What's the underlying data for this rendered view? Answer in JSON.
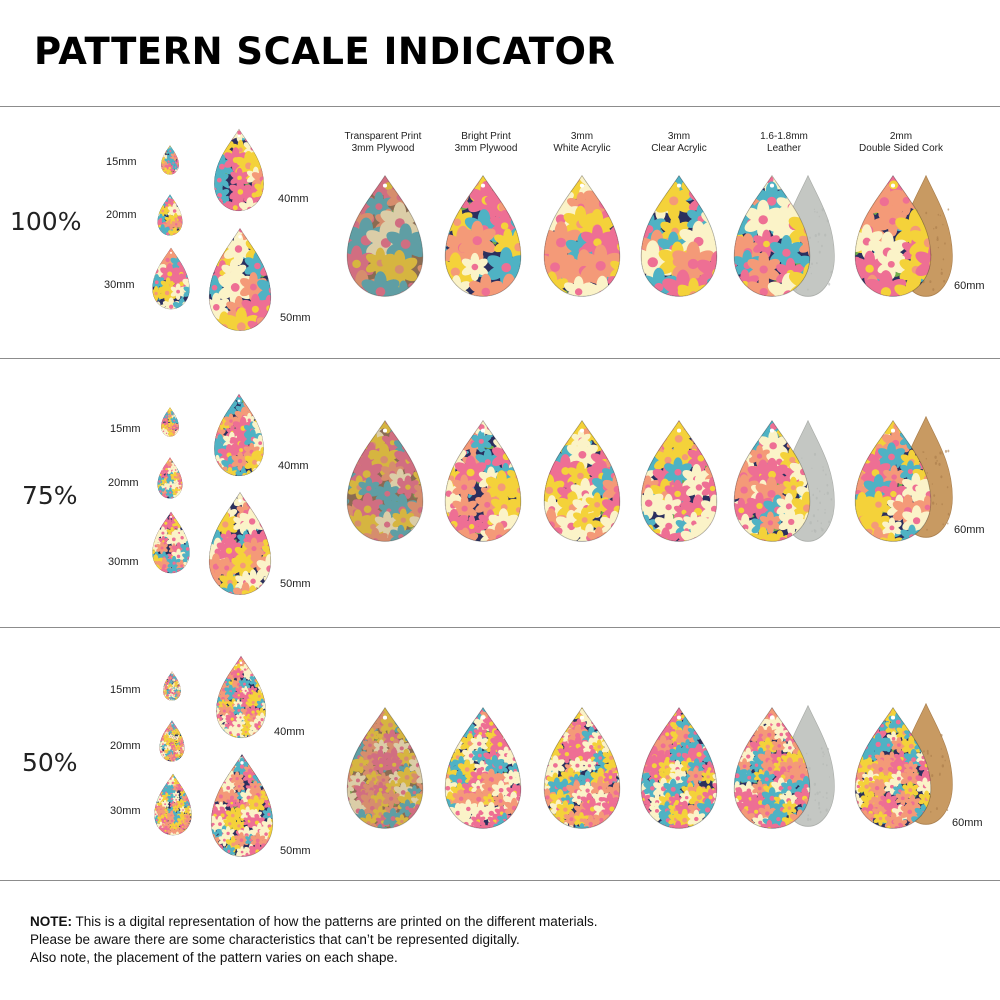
{
  "title": "PATTERN SCALE INDICATOR",
  "size_labels": [
    "15mm",
    "20mm",
    "30mm",
    "40mm",
    "50mm"
  ],
  "large_size_label": "60mm",
  "materials": [
    {
      "line1": "Transparent Print",
      "line2": "3mm Plywood"
    },
    {
      "line1": "Bright Print",
      "line2": "3mm Plywood"
    },
    {
      "line1": "3mm",
      "line2": "White Acrylic"
    },
    {
      "line1": "3mm",
      "line2": "Clear Acrylic"
    },
    {
      "line1": "1.6-1.8mm",
      "line2": "Leather"
    },
    {
      "line1": "2mm",
      "line2": "Double Sided Cork"
    }
  ],
  "sections": [
    {
      "scale": "100%",
      "pattern_scale": 1.0
    },
    {
      "scale": "75%",
      "pattern_scale": 0.75
    },
    {
      "scale": "50%",
      "pattern_scale": 0.5
    }
  ],
  "colors": {
    "navy": "#2b2f5e",
    "plywood": "#8a6b52",
    "yellow": "#f4d23a",
    "pink": "#ee6f94",
    "cream": "#fbf3c8",
    "teal": "#4fb2c4",
    "green": "#6fae4a",
    "coral": "#f49a78",
    "leather": "#c4c7c3",
    "cork": "#c89a62"
  },
  "note": {
    "label": "NOTE:",
    "line1": " This is a digital representation of how the patterns are printed on the different materials.",
    "line2": "Please be aware there are some characteristics that can’t be represented digitally.",
    "line3": "Also note, the placement of the pattern varies on each shape."
  }
}
